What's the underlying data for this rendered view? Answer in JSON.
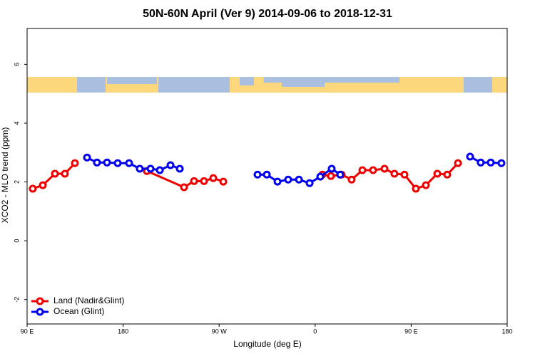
{
  "chart_data": {
    "type": "line",
    "title": "50N-60N April (Ver 9)   2014-09-06 to 2018-12-31",
    "xlabel": "Longitude (deg E)",
    "ylabel": "XCO2 - MLO trend (ppm)",
    "xlim": [
      90,
      540
    ],
    "ylim": [
      -2.83,
      7.22
    ],
    "xticks": [
      {
        "value": 90,
        "label": "90 E"
      },
      180,
      {
        "value": 270,
        "label": "90 W"
      },
      {
        "value": 360,
        "label": "0"
      },
      {
        "value": 450,
        "label": "90 E"
      },
      {
        "value": 540,
        "label": "180"
      }
    ],
    "yticks": [
      -2,
      0,
      2,
      4,
      6
    ],
    "legend": "bottom-left",
    "series": [
      {
        "name": "Land (Nadir&Glint)",
        "color": "#ee0000",
        "x": [
          95.3,
          104.7,
          116.1,
          125.4,
          134.8,
          168,
          202.3,
          237.1,
          246.5,
          255.8,
          264.5,
          273.9,
          320,
          366.8,
          374.8,
          384.8,
          394.2,
          404.3,
          414.3,
          425.0,
          434.3,
          443.7,
          454.4,
          463.8,
          474.5,
          483.8,
          493.9
        ],
        "values": [
          1.77,
          1.89,
          2.28,
          2.28,
          2.64,
          null,
          2.37,
          1.82,
          2.03,
          2.03,
          2.13,
          2.01,
          null,
          2.25,
          2.2,
          2.25,
          2.08,
          2.4,
          2.4,
          2.45,
          2.28,
          2.25,
          1.77,
          1.89,
          2.28,
          2.25,
          2.64
        ]
      },
      {
        "name": "Ocean (Glint)",
        "color": "#0000ee",
        "x": [
          146.2,
          155.5,
          164.9,
          174.9,
          185.6,
          195.6,
          205.7,
          214.4,
          224.4,
          233.1,
          270,
          306.0,
          314.7,
          324.7,
          334.7,
          344.8,
          354.8,
          364.8,
          375.5,
          383.5,
          450,
          505.2,
          515.2,
          524.6,
          534.6
        ],
        "values": [
          2.83,
          2.66,
          2.66,
          2.64,
          2.64,
          2.45,
          2.45,
          2.4,
          2.57,
          2.45,
          null,
          2.25,
          2.25,
          2.01,
          2.08,
          2.08,
          1.96,
          2.18,
          2.45,
          2.25,
          null,
          2.86,
          2.66,
          2.66,
          2.64
        ]
      }
    ]
  }
}
